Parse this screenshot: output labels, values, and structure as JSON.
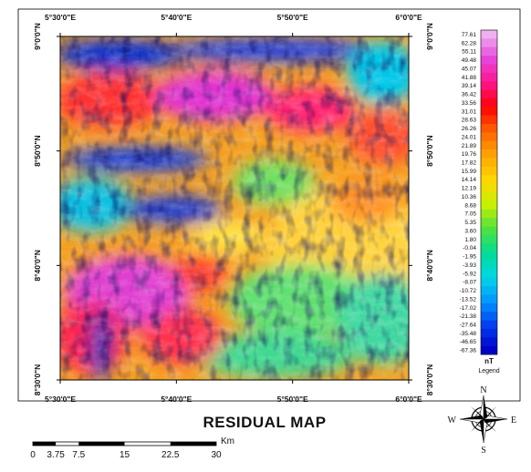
{
  "map": {
    "title": "RESIDUAL MAP",
    "top_labels": [
      "5°30'0\"E",
      "5°40'0\"E",
      "5°50'0\"E",
      "6°0'0\"E"
    ],
    "bottom_labels": [
      "5°30'0\"E",
      "5°40'0\"E",
      "5°50'0\"E",
      "6°0'0\"E"
    ],
    "left_labels": [
      "9°0'0\"N",
      "8°50'0\"N",
      "8°40'0\"N",
      "8°30'0\"N"
    ],
    "right_labels": [
      "9°0'0\"N",
      "8°50'0\"N",
      "8°40'0\"N",
      "8°30'0\"N"
    ]
  },
  "legend": {
    "labels": [
      "77.61",
      "62.28",
      "55.11",
      "49.48",
      "45.07",
      "41.88",
      "39.14",
      "36.42",
      "33.56",
      "31.01",
      "28.63",
      "26.26",
      "24.01",
      "21.89",
      "19.76",
      "17.82",
      "15.99",
      "14.14",
      "12.19",
      "10.36",
      "8.68",
      "7.05",
      "5.35",
      "3.60",
      "1.80",
      "-0.04",
      "-1.95",
      "-3.93",
      "-5.92",
      "-8.07",
      "-10.72",
      "-13.52",
      "-17.02",
      "-21.38",
      "-27.64",
      "-35.48",
      "-46.65",
      "-67.36"
    ],
    "unit": "nT",
    "caption": "Legend"
  },
  "compass": {
    "n": "N",
    "e": "E",
    "s": "S",
    "w": "W"
  },
  "scale_bar": {
    "unit": "Km",
    "ticks": [
      0,
      3.75,
      7.5,
      15,
      22.5,
      30
    ]
  }
}
